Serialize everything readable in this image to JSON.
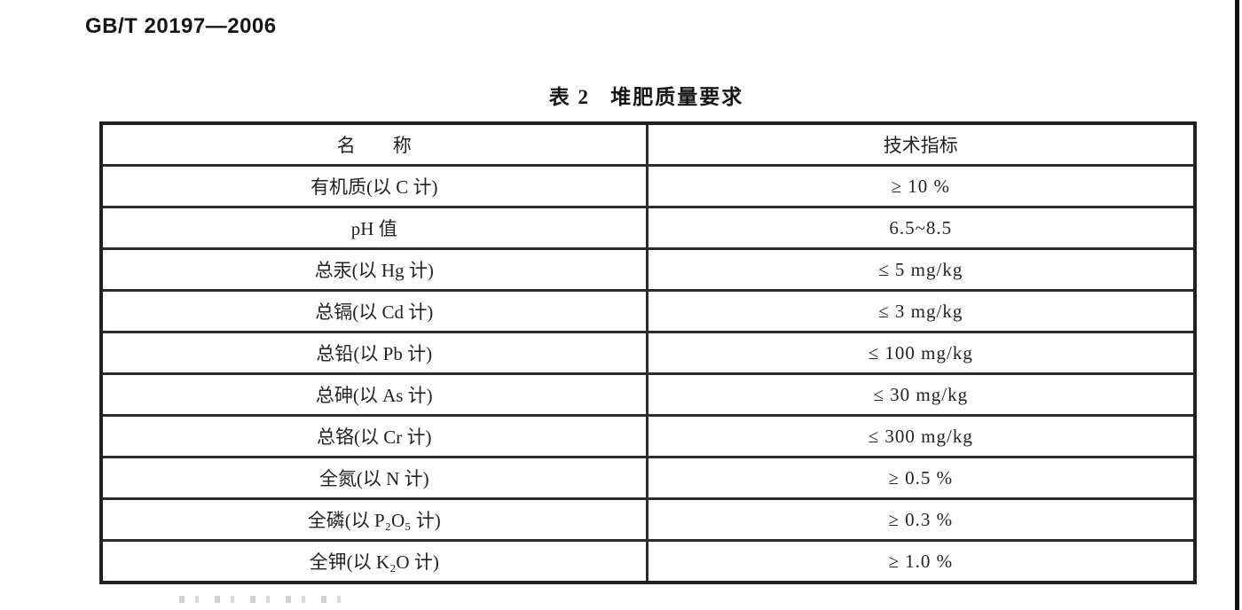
{
  "page": {
    "doc_code": "GB/T 20197—2006",
    "table_title": "表 2   堆肥质量要求"
  },
  "table": {
    "headers": {
      "name": "名        称",
      "indicator": "技术指标"
    },
    "rows": [
      {
        "name": "有机质(以 C 计)",
        "value": "≥ 10 %"
      },
      {
        "name": "pH 值",
        "value": "6.5~8.5"
      },
      {
        "name": "总汞(以 Hg 计)",
        "value": "≤ 5 mg/kg"
      },
      {
        "name": "总镉(以 Cd 计)",
        "value": "≤ 3 mg/kg"
      },
      {
        "name": "总铅(以 Pb 计)",
        "value": "≤ 100 mg/kg"
      },
      {
        "name": "总砷(以 As 计)",
        "value": "≤ 30 mg/kg"
      },
      {
        "name": "总铬(以 Cr 计)",
        "value": "≤ 300 mg/kg"
      },
      {
        "name": "全氮(以 N 计)",
        "value": "≥ 0.5 %"
      },
      {
        "name": "全磷(以 P₂O₅ 计)",
        "value": "≥ 0.3 %"
      },
      {
        "name": "全钾(以 K₂O 计)",
        "value": "≥ 1.0 %"
      }
    ]
  }
}
